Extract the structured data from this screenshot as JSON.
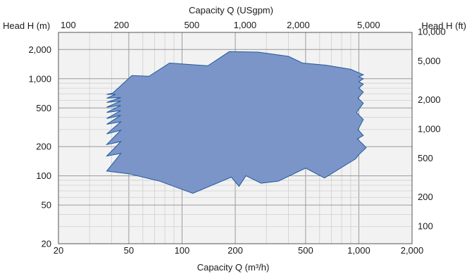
{
  "chart_data": {
    "type": "area",
    "title_top": "Capacity Q (USgpm)",
    "xlabel": "Capacity Q (m³/h)",
    "ylabel_left": "Head H (m)",
    "ylabel_right": "Head H (ft)",
    "x_scale": "log",
    "y_scale": "log",
    "xlim": [
      20,
      2000
    ],
    "ylim": [
      20,
      3000
    ],
    "grid": true,
    "x_ticks": [
      {
        "value": 20,
        "label": "20"
      },
      {
        "value": 50,
        "label": "50"
      },
      {
        "value": 100,
        "label": "100"
      },
      {
        "value": 200,
        "label": "200"
      },
      {
        "value": 500,
        "label": "500"
      },
      {
        "value": 1000,
        "label": "1,000"
      },
      {
        "value": 2000,
        "label": "2,000"
      }
    ],
    "y_ticks": [
      {
        "value": 20,
        "label": "20"
      },
      {
        "value": 50,
        "label": "50"
      },
      {
        "value": 100,
        "label": "100"
      },
      {
        "value": 200,
        "label": "200"
      },
      {
        "value": 500,
        "label": "500"
      },
      {
        "value": 1000,
        "label": "1,000"
      },
      {
        "value": 2000,
        "label": "2,000"
      }
    ],
    "top_ticks": [
      {
        "value": 100,
        "label": "100"
      },
      {
        "value": 200,
        "label": "200"
      },
      {
        "value": 500,
        "label": "500"
      },
      {
        "value": 1000,
        "label": "1,000"
      },
      {
        "value": 2000,
        "label": "2,000"
      },
      {
        "value": 5000,
        "label": "5,000"
      }
    ],
    "right_ticks": [
      {
        "value": 100,
        "label": "100"
      },
      {
        "value": 200,
        "label": "200"
      },
      {
        "value": 500,
        "label": "500"
      },
      {
        "value": 1000,
        "label": "1,000"
      },
      {
        "value": 2000,
        "label": "2,000"
      },
      {
        "value": 5000,
        "label": "5,000"
      },
      {
        "value": 10000,
        "label": "10,000"
      }
    ],
    "region_color": "#7b95c8",
    "region_stroke": "#1f5a9e",
    "grid_color": "#cfcfcf",
    "major_grid_color": "#9a9a9a",
    "plot_bg": "#f2f2f2",
    "region": [
      [
        37.5,
        690
      ],
      [
        40.5,
        710
      ],
      [
        52,
        1080
      ],
      [
        65,
        1060
      ],
      [
        85,
        1450
      ],
      [
        140,
        1360
      ],
      [
        185,
        1900
      ],
      [
        270,
        1880
      ],
      [
        400,
        1700
      ],
      [
        480,
        1450
      ],
      [
        650,
        1380
      ],
      [
        900,
        1250
      ],
      [
        1060,
        1100
      ],
      [
        1000,
        1050
      ],
      [
        1060,
        1000
      ],
      [
        1000,
        930
      ],
      [
        1060,
        880
      ],
      [
        1000,
        800
      ],
      [
        1060,
        730
      ],
      [
        990,
        630
      ],
      [
        1060,
        560
      ],
      [
        970,
        450
      ],
      [
        1060,
        380
      ],
      [
        990,
        300
      ],
      [
        1060,
        260
      ],
      [
        980,
        240
      ],
      [
        1060,
        210
      ],
      [
        1100,
        195
      ],
      [
        1000,
        165
      ],
      [
        960,
        150
      ],
      [
        640,
        95
      ],
      [
        500,
        120
      ],
      [
        350,
        88
      ],
      [
        280,
        84
      ],
      [
        230,
        100
      ],
      [
        210,
        78
      ],
      [
        190,
        97
      ],
      [
        115,
        66
      ],
      [
        75,
        88
      ],
      [
        50,
        105
      ],
      [
        37.5,
        112
      ],
      [
        45,
        170
      ],
      [
        37.5,
        160
      ],
      [
        45,
        225
      ],
      [
        37.5,
        210
      ],
      [
        45,
        295
      ],
      [
        37.5,
        270
      ],
      [
        45,
        360
      ],
      [
        37.5,
        340
      ],
      [
        45,
        420
      ],
      [
        37.5,
        390
      ],
      [
        45,
        470
      ],
      [
        37.5,
        450
      ],
      [
        45,
        530
      ],
      [
        37.5,
        510
      ],
      [
        45,
        590
      ],
      [
        37.5,
        570
      ],
      [
        45,
        640
      ],
      [
        37.5,
        630
      ],
      [
        42,
        690
      ]
    ]
  }
}
